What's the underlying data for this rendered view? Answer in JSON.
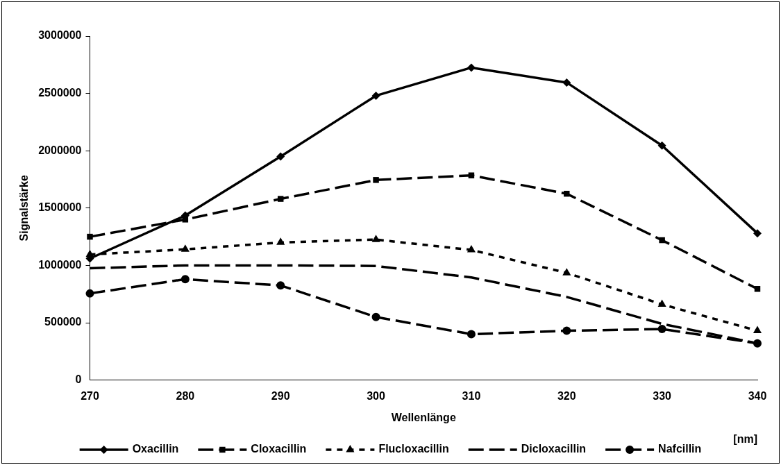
{
  "chart_data": {
    "type": "line",
    "xlabel": "Wellenlänge",
    "ylabel": "Signalstärke",
    "annotations": [
      "[nm]"
    ],
    "x": [
      270,
      280,
      290,
      300,
      310,
      320,
      330,
      340
    ],
    "xlim": [
      270,
      340
    ],
    "xticks": [
      270,
      280,
      290,
      300,
      310,
      320,
      330,
      340
    ],
    "ylim": [
      0,
      3000000
    ],
    "yticks": [
      0,
      500000,
      1000000,
      1500000,
      2000000,
      2500000,
      3000000
    ],
    "grid": false,
    "legend": "bottom",
    "series": [
      {
        "name": "Oxacillin",
        "color": "#000000",
        "marker": "diamond",
        "line_style": "solid",
        "values": [
          1060000,
          1435000,
          1950000,
          2480000,
          2725000,
          2595000,
          2045000,
          1280000
        ]
      },
      {
        "name": "Cloxacillin",
        "color": "#000000",
        "marker": "square",
        "line_style": "dashed",
        "values": [
          1250000,
          1400000,
          1580000,
          1745000,
          1785000,
          1625000,
          1220000,
          795000
        ]
      },
      {
        "name": "Flucloxacillin",
        "color": "#000000",
        "marker": "triangle",
        "line_style": "dotted",
        "values": [
          1095000,
          1140000,
          1200000,
          1225000,
          1135000,
          935000,
          660000,
          430000
        ]
      },
      {
        "name": "Dicloxacillin",
        "color": "#000000",
        "marker": "none",
        "line_style": "dashed",
        "values": [
          975000,
          1000000,
          1000000,
          995000,
          895000,
          725000,
          490000,
          320000
        ]
      },
      {
        "name": "Nafcillin",
        "color": "#000000",
        "marker": "circle",
        "line_style": "dashed",
        "values": [
          755000,
          880000,
          825000,
          550000,
          400000,
          430000,
          445000,
          320000
        ]
      }
    ]
  }
}
